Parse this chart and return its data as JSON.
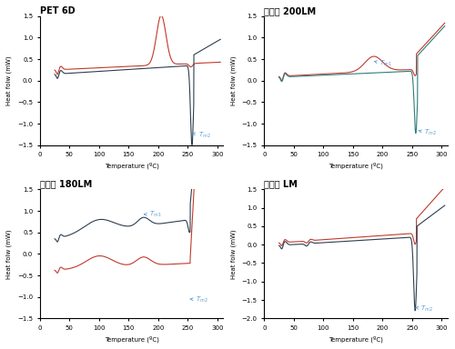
{
  "titles": [
    "PET 6D",
    "단독사 200LM",
    "복합사 180LM",
    "중공사 LM"
  ],
  "xlabel": "Temperature (ºC)",
  "ylabel": "Heat folw (mW)",
  "xlim": [
    0,
    310
  ],
  "color_red": "#c0392b",
  "color_dark": "#2c3e50",
  "color_teal": "#2e7d7d",
  "annotation_color": "#5b9bd5"
}
